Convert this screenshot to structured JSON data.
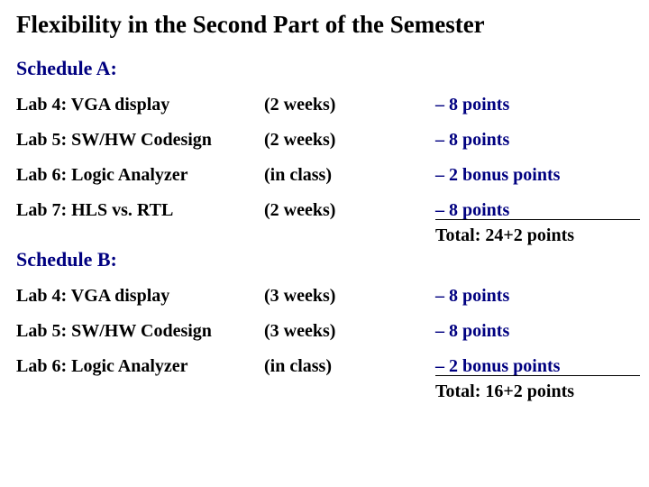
{
  "title": "Flexibility in the Second Part of the Semester",
  "scheduleA": {
    "label": "Schedule A:",
    "rows": [
      {
        "lab": "Lab 4: VGA display",
        "duration": "(2 weeks)",
        "points": "– 8 points"
      },
      {
        "lab": "Lab 5:  SW/HW Codesign",
        "duration": "(2 weeks)",
        "points": "– 8 points"
      },
      {
        "lab": "Lab 6: Logic Analyzer",
        "duration": "(in class)",
        "points": "– 2 bonus points"
      },
      {
        "lab": "Lab 7: HLS vs. RTL",
        "duration": "(2 weeks)",
        "points": "– 8 points"
      }
    ],
    "total": "Total:  24+2 points"
  },
  "scheduleB": {
    "label": "Schedule B:",
    "rows": [
      {
        "lab": "Lab 4: VGA display",
        "duration": "(3 weeks)",
        "points": "– 8 points"
      },
      {
        "lab": "Lab 5: SW/HW Codesign",
        "duration": "(3 weeks)",
        "points": "– 8 points"
      },
      {
        "lab": "Lab 6: Logic Analyzer",
        "duration": "(in class)",
        "points": "– 2 bonus points"
      }
    ],
    "total": "Total:  16+2 points"
  },
  "colors": {
    "navy": "#000080",
    "black": "#000000",
    "background": "#ffffff"
  }
}
